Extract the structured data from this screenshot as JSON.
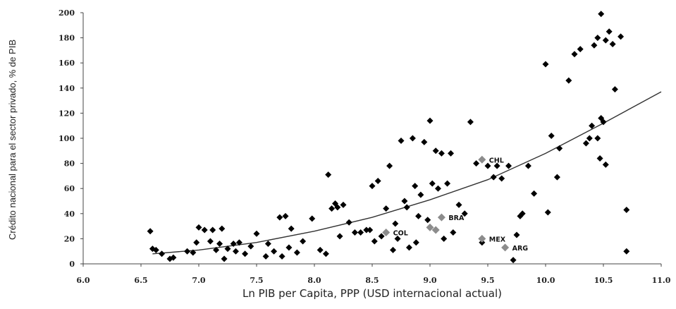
{
  "chart_data": {
    "type": "scatter",
    "xlabel": "Ln PIB per Capita, PPP (USD internacional actual)",
    "ylabel": "Crédito nacional para el sector privado, % de PIB",
    "xlim": [
      6.0,
      11.0
    ],
    "ylim": [
      0,
      200
    ],
    "x_ticks": [
      "6.0",
      "6.5",
      "7.0",
      "7.5",
      "8.0",
      "8.5",
      "9.0",
      "9.5",
      "10.0",
      "10.5",
      "11.0"
    ],
    "y_ticks": [
      "0",
      "20",
      "40",
      "60",
      "80",
      "100",
      "120",
      "140",
      "160",
      "180",
      "200"
    ],
    "grid": false,
    "colors": {
      "points": "#000000",
      "highlight": "#8c8c8c",
      "trend": "#333333"
    },
    "series": [
      {
        "points": [
          [
            6.58,
            26
          ],
          [
            6.6,
            12
          ],
          [
            6.63,
            11
          ],
          [
            6.68,
            8
          ],
          [
            6.75,
            4
          ],
          [
            6.78,
            5
          ],
          [
            6.9,
            10
          ],
          [
            6.95,
            9
          ],
          [
            6.98,
            17
          ],
          [
            7.0,
            29
          ],
          [
            7.05,
            27
          ],
          [
            7.1,
            18
          ],
          [
            7.12,
            27
          ],
          [
            7.15,
            11
          ],
          [
            7.18,
            16
          ],
          [
            7.2,
            28
          ],
          [
            7.22,
            4
          ],
          [
            7.25,
            12
          ],
          [
            7.3,
            16
          ],
          [
            7.32,
            10
          ],
          [
            7.35,
            17
          ],
          [
            7.4,
            8
          ],
          [
            7.45,
            14
          ],
          [
            7.5,
            24
          ],
          [
            7.58,
            6
          ],
          [
            7.6,
            16
          ],
          [
            7.65,
            10
          ],
          [
            7.7,
            37
          ],
          [
            7.72,
            6
          ],
          [
            7.75,
            38
          ],
          [
            7.78,
            13
          ],
          [
            7.8,
            28
          ],
          [
            7.85,
            9
          ],
          [
            7.9,
            18
          ],
          [
            7.98,
            36
          ],
          [
            8.05,
            11
          ],
          [
            8.1,
            8
          ],
          [
            8.12,
            71
          ],
          [
            8.15,
            44
          ],
          [
            8.18,
            48
          ],
          [
            8.2,
            45
          ],
          [
            8.22,
            22
          ],
          [
            8.25,
            47
          ],
          [
            8.3,
            33
          ],
          [
            8.35,
            25
          ],
          [
            8.4,
            25
          ],
          [
            8.45,
            27
          ],
          [
            8.48,
            27
          ],
          [
            8.5,
            62
          ],
          [
            8.52,
            18
          ],
          [
            8.55,
            66
          ],
          [
            8.58,
            22
          ],
          [
            8.62,
            44
          ],
          [
            8.65,
            78
          ],
          [
            8.68,
            11
          ],
          [
            8.7,
            32
          ],
          [
            8.72,
            20
          ],
          [
            8.75,
            98
          ],
          [
            8.78,
            50
          ],
          [
            8.8,
            45
          ],
          [
            8.82,
            13
          ],
          [
            8.85,
            100
          ],
          [
            8.87,
            62
          ],
          [
            8.88,
            17
          ],
          [
            8.9,
            38
          ],
          [
            8.92,
            55
          ],
          [
            8.95,
            97
          ],
          [
            8.98,
            35
          ],
          [
            9.0,
            114
          ],
          [
            9.02,
            64
          ],
          [
            9.05,
            90
          ],
          [
            9.07,
            60
          ],
          [
            9.1,
            88
          ],
          [
            9.12,
            20
          ],
          [
            9.15,
            64
          ],
          [
            9.18,
            88
          ],
          [
            9.2,
            25
          ],
          [
            9.25,
            47
          ],
          [
            9.3,
            40
          ],
          [
            9.35,
            113
          ],
          [
            9.4,
            80
          ],
          [
            9.45,
            17
          ],
          [
            9.5,
            78
          ],
          [
            9.55,
            69
          ],
          [
            9.58,
            78
          ],
          [
            9.62,
            68
          ],
          [
            9.68,
            78
          ],
          [
            9.72,
            3
          ],
          [
            9.75,
            23
          ],
          [
            9.78,
            38
          ],
          [
            9.8,
            40
          ],
          [
            9.85,
            78
          ],
          [
            9.9,
            56
          ],
          [
            10.0,
            159
          ],
          [
            10.02,
            41
          ],
          [
            10.05,
            102
          ],
          [
            10.1,
            69
          ],
          [
            10.12,
            92
          ],
          [
            10.2,
            146
          ],
          [
            10.25,
            167
          ],
          [
            10.3,
            171
          ],
          [
            10.35,
            96
          ],
          [
            10.38,
            100
          ],
          [
            10.4,
            110
          ],
          [
            10.42,
            174
          ],
          [
            10.45,
            100
          ],
          [
            10.47,
            84
          ],
          [
            10.48,
            116
          ],
          [
            10.5,
            113
          ],
          [
            10.52,
            79
          ],
          [
            10.55,
            185
          ],
          [
            10.58,
            175
          ],
          [
            10.6,
            139
          ],
          [
            10.45,
            180
          ],
          [
            10.48,
            199
          ],
          [
            10.52,
            178
          ],
          [
            10.65,
            181
          ],
          [
            10.7,
            43
          ],
          [
            10.7,
            10
          ]
        ]
      }
    ],
    "highlighted": [
      {
        "label": "CHL",
        "x": 9.45,
        "y": 83
      },
      {
        "label": "BRA",
        "x": 9.1,
        "y": 37
      },
      {
        "label": "COL",
        "x": 8.62,
        "y": 25
      },
      {
        "label": "MEX",
        "x": 9.45,
        "y": 20
      },
      {
        "label": "ARG",
        "x": 9.65,
        "y": 13
      },
      {
        "label": "",
        "x": 9.0,
        "y": 29
      },
      {
        "label": "",
        "x": 9.05,
        "y": 27
      }
    ],
    "trend_line": [
      [
        6.6,
        8
      ],
      [
        7.0,
        11
      ],
      [
        7.5,
        17
      ],
      [
        8.0,
        26
      ],
      [
        8.5,
        37
      ],
      [
        9.0,
        51
      ],
      [
        9.5,
        67
      ],
      [
        10.0,
        88
      ],
      [
        10.5,
        112
      ],
      [
        11.0,
        137
      ]
    ]
  }
}
